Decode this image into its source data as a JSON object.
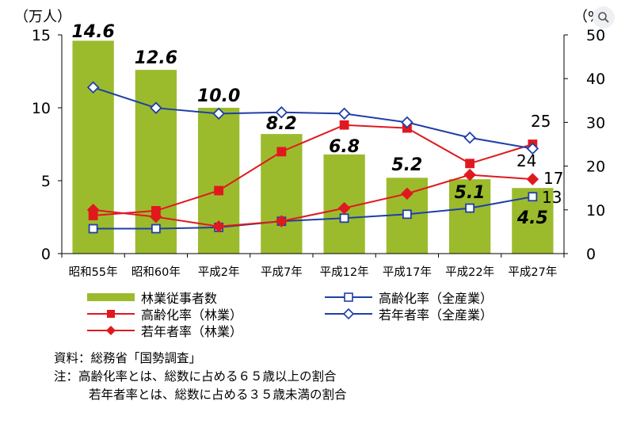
{
  "chart_data": {
    "type": "bar",
    "y_left_unit": "（万人）",
    "y_right_unit": "（%）",
    "categories": [
      "昭和55年",
      "昭和60年",
      "平成2年",
      "平成7年",
      "平成12年",
      "平成17年",
      "平成22年",
      "平成27年"
    ],
    "ylim_left": [
      0,
      15
    ],
    "yticks_left": [
      0,
      5,
      10,
      15
    ],
    "ylim_right": [
      0,
      50
    ],
    "yticks_right": [
      0,
      10,
      20,
      30,
      40,
      50
    ],
    "bars": {
      "name": "林業従事者数",
      "axis": "left",
      "color": "#9bbb2c",
      "values": [
        14.6,
        12.6,
        10.0,
        8.2,
        6.8,
        5.2,
        5.1,
        4.5
      ],
      "labels": [
        "14.6",
        "12.6",
        "10.0",
        "8.2",
        "6.8",
        "5.2",
        "5.1",
        "4.5"
      ]
    },
    "series": [
      {
        "name": "高齢化率（全産業）",
        "axis": "right",
        "color": "#1f3fa8",
        "marker": "square-open",
        "values": [
          5.7,
          5.7,
          6.0,
          7.4,
          8.1,
          9.0,
          10.4,
          13.0
        ],
        "end_label": "13"
      },
      {
        "name": "高齢化率（林業）",
        "axis": "right",
        "color": "#e0191f",
        "marker": "square-filled",
        "values": [
          8.7,
          9.8,
          14.4,
          23.3,
          29.4,
          28.7,
          20.6,
          25.0
        ],
        "end_label": "25"
      },
      {
        "name": "若年者率（全産業）",
        "axis": "right",
        "color": "#1f3fa8",
        "marker": "diamond-open",
        "values": [
          38.0,
          33.3,
          32.0,
          32.3,
          32.0,
          30.0,
          26.5,
          24.0
        ],
        "end_label": "24"
      },
      {
        "name": "若年者率（林業）",
        "axis": "right",
        "color": "#e0191f",
        "marker": "diamond-filled",
        "values": [
          10.0,
          8.4,
          6.2,
          7.4,
          10.4,
          13.7,
          18.0,
          17.0
        ],
        "end_label": "17"
      }
    ],
    "legend": "bottom",
    "grid": false
  },
  "notes": {
    "source": "資料：総務省「国勢調査」",
    "note1": "注：高齢化率とは、総数に占める６５歳以上の割合",
    "note2": "若年者率とは、総数に占める３５歳未満の割合"
  },
  "corner_icon": "zoom-icon"
}
